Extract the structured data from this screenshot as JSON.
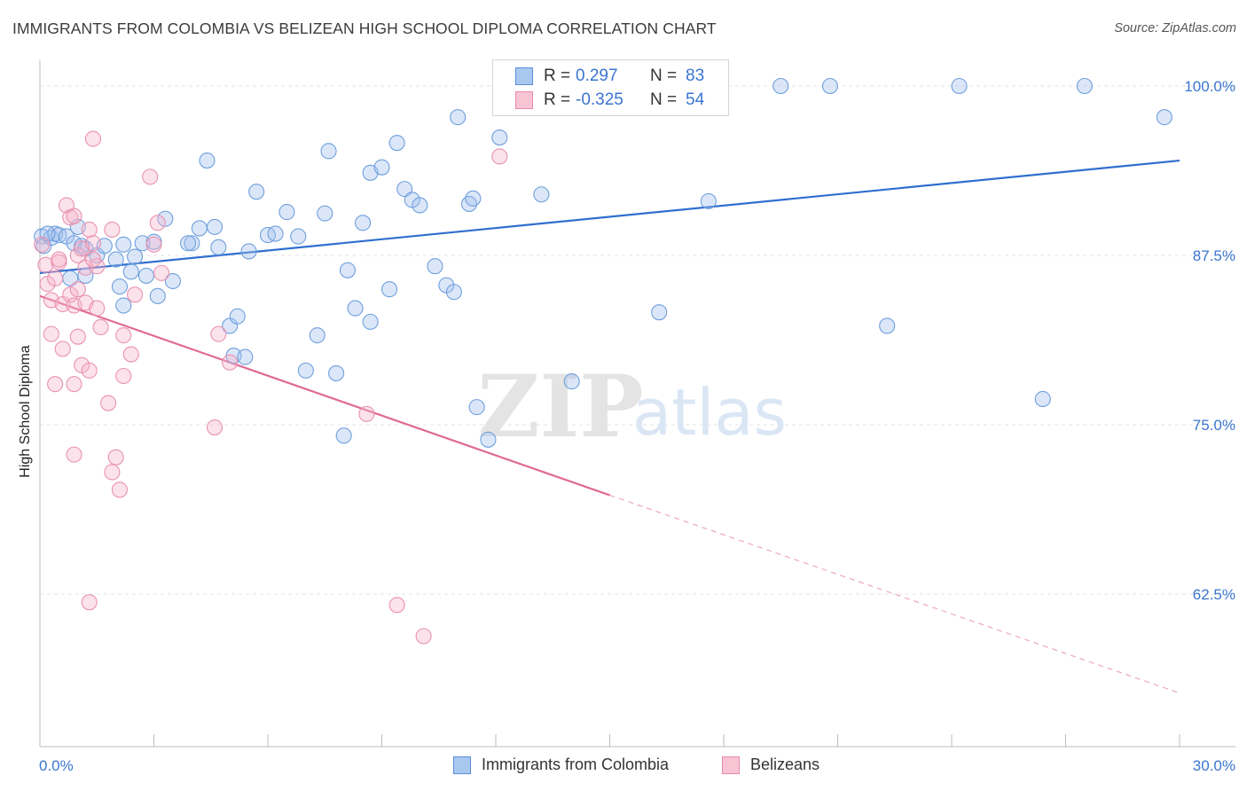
{
  "header": {
    "title": "IMMIGRANTS FROM COLOMBIA VS BELIZEAN HIGH SCHOOL DIPLOMA CORRELATION CHART",
    "source": "Source: ZipAtlas.com"
  },
  "watermark": {
    "zip": "ZIP",
    "atlas": "atlas"
  },
  "legend": {
    "rows": [
      {
        "r_label": "R =",
        "r_value": "0.297",
        "n_label": "N =",
        "n_value": "83",
        "color": "#a9c8f0",
        "border": "#5a8fd8"
      },
      {
        "r_label": "R =",
        "r_value": "-0.325",
        "n_label": "N =",
        "n_value": "54",
        "color": "#f8c4d4",
        "border": "#e68aa8"
      }
    ]
  },
  "colors": {
    "blue_fill": "rgba(160,192,236,0.38)",
    "blue_stroke": "#6f9fdd",
    "blue_line": "#2f6fcf",
    "pink_fill": "rgba(246,180,202,0.38)",
    "pink_stroke": "#e892b0",
    "pink_line": "#e06b95",
    "tick_text": "#3a75d0",
    "grid": "#e3e3e3"
  },
  "chart_data": {
    "type": "scatter",
    "title": "IMMIGRANTS FROM COLOMBIA VS BELIZEAN HIGH SCHOOL DIPLOMA CORRELATION CHART",
    "xlabel": "",
    "ylabel": "High School Diploma",
    "xlim": [
      0,
      30
    ],
    "ylim": [
      50,
      101
    ],
    "x_tick_labels": [
      "0.0%",
      "30.0%"
    ],
    "y_ticks": [
      62.5,
      75.0,
      87.5,
      100.0
    ],
    "y_tick_labels": [
      "62.5%",
      "75.0%",
      "87.5%",
      "100.0%"
    ],
    "grid": true,
    "legend_position": "top-center",
    "series": [
      {
        "name": "Immigrants from Colombia",
        "trend": {
          "x": [
            0,
            30
          ],
          "y": [
            86.2,
            94.5
          ],
          "dashed_from": null
        },
        "points": [
          [
            0.05,
            88.9
          ],
          [
            0.1,
            88.2
          ],
          [
            0.3,
            88.8
          ],
          [
            0.4,
            89.1
          ],
          [
            0.5,
            89.0
          ],
          [
            0.7,
            88.9
          ],
          [
            0.9,
            88.4
          ],
          [
            1.1,
            88.2
          ],
          [
            1.2,
            88.0
          ],
          [
            1.0,
            89.6
          ],
          [
            0.8,
            85.8
          ],
          [
            1.5,
            87.5
          ],
          [
            1.7,
            88.2
          ],
          [
            2.0,
            87.2
          ],
          [
            2.2,
            88.3
          ],
          [
            2.5,
            87.4
          ],
          [
            2.7,
            88.4
          ],
          [
            3.0,
            88.5
          ],
          [
            3.3,
            90.2
          ],
          [
            3.5,
            85.6
          ],
          [
            2.1,
            85.2
          ],
          [
            2.8,
            86.0
          ],
          [
            3.1,
            84.5
          ],
          [
            2.4,
            86.3
          ],
          [
            2.2,
            83.8
          ],
          [
            1.2,
            86.0
          ],
          [
            4.0,
            88.4
          ],
          [
            4.2,
            89.5
          ],
          [
            4.4,
            94.5
          ],
          [
            4.6,
            89.6
          ],
          [
            4.7,
            88.1
          ],
          [
            5.0,
            82.3
          ],
          [
            5.1,
            80.1
          ],
          [
            5.2,
            83.0
          ],
          [
            5.4,
            80.0
          ],
          [
            5.7,
            92.2
          ],
          [
            5.5,
            87.8
          ],
          [
            6.0,
            89.0
          ],
          [
            6.2,
            89.1
          ],
          [
            6.5,
            90.7
          ],
          [
            6.8,
            88.9
          ],
          [
            7.0,
            79.0
          ],
          [
            7.3,
            81.6
          ],
          [
            7.5,
            90.6
          ],
          [
            7.6,
            95.2
          ],
          [
            7.8,
            78.8
          ],
          [
            8.0,
            74.2
          ],
          [
            8.1,
            86.4
          ],
          [
            8.3,
            83.6
          ],
          [
            8.5,
            89.9
          ],
          [
            8.7,
            82.6
          ],
          [
            8.7,
            93.6
          ],
          [
            9.0,
            94.0
          ],
          [
            9.2,
            85.0
          ],
          [
            9.4,
            95.8
          ],
          [
            9.6,
            92.4
          ],
          [
            9.8,
            91.6
          ],
          [
            10.0,
            91.2
          ],
          [
            10.4,
            86.7
          ],
          [
            10.7,
            85.3
          ],
          [
            10.9,
            84.8
          ],
          [
            11.0,
            97.7
          ],
          [
            11.3,
            91.3
          ],
          [
            11.4,
            91.7
          ],
          [
            11.5,
            76.3
          ],
          [
            11.8,
            73.9
          ],
          [
            12.1,
            96.2
          ],
          [
            12.4,
            100.0
          ],
          [
            13.2,
            92.0
          ],
          [
            13.5,
            100.0
          ],
          [
            14.0,
            78.2
          ],
          [
            15.0,
            100.0
          ],
          [
            16.3,
            83.3
          ],
          [
            17.6,
            91.5
          ],
          [
            19.5,
            100.0
          ],
          [
            20.8,
            100.0
          ],
          [
            22.3,
            82.3
          ],
          [
            24.2,
            100.0
          ],
          [
            26.4,
            76.9
          ],
          [
            27.5,
            100.0
          ],
          [
            29.6,
            97.7
          ],
          [
            0.2,
            89.1
          ],
          [
            3.9,
            88.4
          ]
        ]
      },
      {
        "name": "Belizeans",
        "trend": {
          "x": [
            0,
            15
          ],
          "y": [
            84.5,
            69.8
          ],
          "dashed_to": [
            30,
            55.2
          ]
        },
        "points": [
          [
            0.05,
            88.3
          ],
          [
            0.15,
            86.8
          ],
          [
            0.2,
            85.4
          ],
          [
            0.3,
            84.2
          ],
          [
            0.4,
            85.8
          ],
          [
            0.5,
            87.0
          ],
          [
            0.6,
            83.9
          ],
          [
            0.7,
            91.2
          ],
          [
            0.8,
            90.3
          ],
          [
            0.9,
            90.4
          ],
          [
            1.0,
            87.5
          ],
          [
            1.1,
            88.0
          ],
          [
            1.2,
            86.6
          ],
          [
            1.3,
            89.4
          ],
          [
            1.4,
            88.4
          ],
          [
            1.5,
            86.7
          ],
          [
            0.8,
            84.6
          ],
          [
            0.9,
            83.8
          ],
          [
            1.0,
            85.0
          ],
          [
            1.2,
            84.0
          ],
          [
            1.5,
            83.6
          ],
          [
            1.6,
            82.2
          ],
          [
            1.9,
            89.4
          ],
          [
            2.2,
            81.6
          ],
          [
            2.4,
            80.2
          ],
          [
            2.5,
            84.6
          ],
          [
            0.3,
            81.7
          ],
          [
            0.6,
            80.6
          ],
          [
            1.0,
            81.5
          ],
          [
            1.1,
            79.4
          ],
          [
            0.4,
            78.0
          ],
          [
            0.9,
            78.0
          ],
          [
            1.3,
            79.0
          ],
          [
            2.2,
            78.6
          ],
          [
            1.8,
            76.6
          ],
          [
            0.9,
            72.8
          ],
          [
            1.9,
            71.5
          ],
          [
            2.0,
            72.6
          ],
          [
            2.1,
            70.2
          ],
          [
            1.4,
            96.1
          ],
          [
            2.9,
            93.3
          ],
          [
            3.1,
            89.9
          ],
          [
            3.0,
            88.3
          ],
          [
            3.2,
            86.2
          ],
          [
            4.6,
            74.8
          ],
          [
            4.7,
            81.7
          ],
          [
            5.0,
            79.6
          ],
          [
            8.6,
            75.8
          ],
          [
            12.1,
            94.8
          ],
          [
            1.3,
            61.9
          ],
          [
            9.4,
            61.7
          ],
          [
            10.1,
            59.4
          ],
          [
            0.5,
            87.2
          ],
          [
            1.4,
            87.2
          ]
        ]
      }
    ]
  },
  "bottom_legend": [
    {
      "label": "Immigrants from Colombia"
    },
    {
      "label": "Belizeans"
    }
  ]
}
